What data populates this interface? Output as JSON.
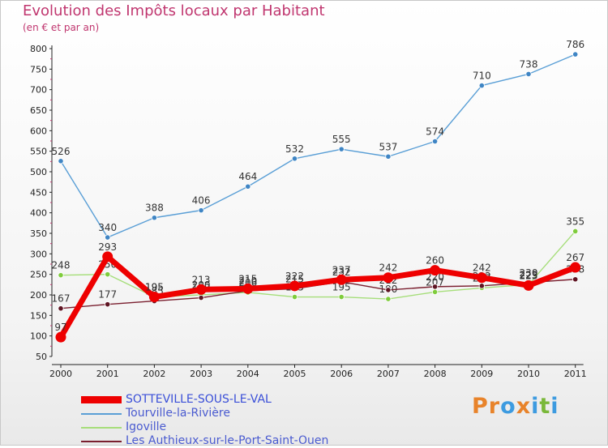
{
  "title": "Evolution des Impôts locaux par Habitant",
  "subtitle": "(en € et par an)",
  "logo": {
    "letters": [
      "P",
      "r",
      "o",
      "x",
      "i",
      "t",
      "i"
    ],
    "colors": [
      "#e8832a",
      "#e8832a",
      "#3d9be0",
      "#e8832a",
      "#3d9be0",
      "#7ab83a",
      "#3d9be0"
    ]
  },
  "chart_data": {
    "type": "line",
    "title": "Evolution des Impôts locaux par Habitant",
    "ylabel": "(en € et par an)",
    "x": [
      "2000",
      "2001",
      "2002",
      "2003",
      "2004",
      "2005",
      "2006",
      "2007",
      "2008",
      "2009",
      "2010",
      "2011"
    ],
    "ylim": [
      50,
      800
    ],
    "yticks": [
      "50",
      "100",
      "150",
      "200",
      "250",
      "300",
      "350",
      "400",
      "450",
      "500",
      "550",
      "600",
      "650",
      "700",
      "750",
      "800"
    ],
    "series": [
      {
        "name": "Tourville-la-Rivière",
        "color": "#5a9fd6",
        "point_color": "#3f85c4",
        "values": [
          526,
          340,
          388,
          406,
          464,
          532,
          555,
          537,
          574,
          710,
          738,
          786
        ],
        "labels": [
          "526",
          "340",
          "388",
          "406",
          "464",
          "532",
          "555",
          "537",
          "574",
          "710",
          "738",
          "786"
        ]
      },
      {
        "name": "Igoville",
        "color": "#a6de7a",
        "point_color": "#7fcc3c",
        "values": [
          248,
          250,
          195,
          200,
          206,
          195,
          195,
          190,
          207,
          217,
          225,
          355
        ],
        "labels": [
          "248",
          "250",
          "195",
          "200",
          "206",
          "195",
          "195",
          "190",
          "207",
          "217",
          "225",
          "355"
        ]
      },
      {
        "name": "Les Authieux-sur-le-Port-Saint-Ouen",
        "color": "#7a1f2f",
        "point_color": "#5e1422",
        "values": [
          167,
          177,
          185,
          193,
          210,
          215,
          232,
          212,
          220,
          222,
          230,
          238
        ],
        "labels": [
          "167",
          "177",
          "185",
          "193",
          "210",
          "215",
          "232",
          "212",
          "220",
          "222",
          "230",
          "238"
        ]
      },
      {
        "name": "SOTTEVILLE-SOUS-LE-VAL",
        "color": "#ee0000",
        "point_color": "#ee0000",
        "values": [
          97,
          293,
          195,
          213,
          215,
          222,
          237,
          242,
          260,
          242,
          223,
          267
        ],
        "labels": [
          "97",
          "293",
          "195",
          "213",
          "215",
          "222",
          "237",
          "242",
          "260",
          "242",
          "223",
          "267"
        ]
      }
    ],
    "legend": [
      {
        "name": "SOTTEVILLE-SOUS-LE-VAL",
        "color": "#ee0000",
        "thickness": "thick"
      },
      {
        "name": "Tourville-la-Rivière",
        "color": "#5a9fd6",
        "thickness": "thin"
      },
      {
        "name": "Igoville",
        "color": "#a6de7a",
        "thickness": "thin"
      },
      {
        "name": "Les Authieux-sur-le-Port-Saint-Ouen",
        "color": "#7a1f2f",
        "thickness": "thin"
      }
    ],
    "legend_position": "bottom-left",
    "grid": false
  }
}
